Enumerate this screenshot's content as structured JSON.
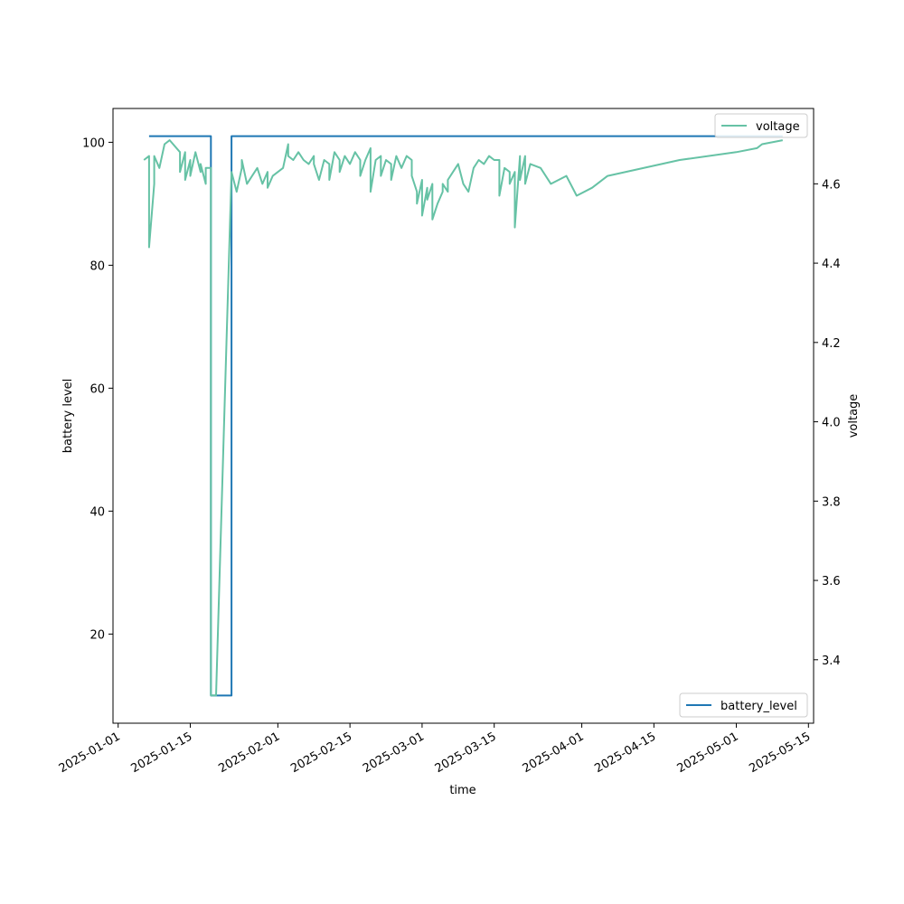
{
  "chart_data": {
    "type": "line",
    "title": "",
    "xlabel": "time",
    "ylabel_left": "battery level",
    "ylabel_right": "voltage",
    "x_ticks": [
      "2025-01-01",
      "2025-01-15",
      "2025-02-01",
      "2025-02-15",
      "2025-03-01",
      "2025-03-15",
      "2025-04-01",
      "2025-04-15",
      "2025-05-01",
      "2025-05-15"
    ],
    "y_left_ticks": [
      "20",
      "40",
      "60",
      "80",
      "100"
    ],
    "y_right_ticks": [
      "3.4",
      "3.6",
      "3.8",
      "4.0",
      "4.2",
      "4.4",
      "4.6"
    ],
    "xlim": [
      "2024-12-31",
      "2025-05-16"
    ],
    "ylim_left": [
      5.5,
      105.5
    ],
    "ylim_right": [
      3.24,
      4.79
    ],
    "grid": false,
    "colors": {
      "battery_level": "#1f77b4",
      "voltage": "#66c2a5"
    },
    "series": [
      {
        "name": "battery_level",
        "axis": "left",
        "points": [
          [
            "2025-01-07",
            101
          ],
          [
            "2025-01-19",
            101
          ],
          [
            "2025-01-19",
            10
          ],
          [
            "2025-01-23",
            10
          ],
          [
            "2025-01-23",
            101
          ],
          [
            "2025-05-10",
            101
          ]
        ]
      },
      {
        "name": "voltage",
        "axis": "right",
        "points": [
          [
            "2025-01-06",
            4.66
          ],
          [
            "2025-01-07",
            4.67
          ],
          [
            "2025-01-07",
            4.44
          ],
          [
            "2025-01-08",
            4.6
          ],
          [
            "2025-01-08",
            4.67
          ],
          [
            "2025-01-09",
            4.64
          ],
          [
            "2025-01-10",
            4.7
          ],
          [
            "2025-01-11",
            4.71
          ],
          [
            "2025-01-13",
            4.68
          ],
          [
            "2025-01-13",
            4.63
          ],
          [
            "2025-01-14",
            4.68
          ],
          [
            "2025-01-14",
            4.61
          ],
          [
            "2025-01-15",
            4.66
          ],
          [
            "2025-01-15",
            4.62
          ],
          [
            "2025-01-16",
            4.68
          ],
          [
            "2025-01-17",
            4.63
          ],
          [
            "2025-01-17",
            4.65
          ],
          [
            "2025-01-18",
            4.6
          ],
          [
            "2025-01-18",
            4.64
          ],
          [
            "2025-01-19",
            4.64
          ],
          [
            "2025-01-19",
            4.63
          ],
          [
            "2025-01-19",
            3.31
          ],
          [
            "2025-01-20",
            3.31
          ],
          [
            "2025-01-23",
            4.63
          ],
          [
            "2025-01-24",
            4.58
          ],
          [
            "2025-01-25",
            4.64
          ],
          [
            "2025-01-25",
            4.66
          ],
          [
            "2025-01-26",
            4.6
          ],
          [
            "2025-01-27",
            4.62
          ],
          [
            "2025-01-28",
            4.64
          ],
          [
            "2025-01-29",
            4.6
          ],
          [
            "2025-01-30",
            4.63
          ],
          [
            "2025-01-30",
            4.59
          ],
          [
            "2025-01-31",
            4.62
          ],
          [
            "2025-02-01",
            4.63
          ],
          [
            "2025-02-02",
            4.64
          ],
          [
            "2025-02-03",
            4.7
          ],
          [
            "2025-02-03",
            4.67
          ],
          [
            "2025-02-04",
            4.66
          ],
          [
            "2025-02-05",
            4.68
          ],
          [
            "2025-02-06",
            4.66
          ],
          [
            "2025-02-07",
            4.65
          ],
          [
            "2025-02-08",
            4.67
          ],
          [
            "2025-02-08",
            4.65
          ],
          [
            "2025-02-09",
            4.61
          ],
          [
            "2025-02-10",
            4.66
          ],
          [
            "2025-02-11",
            4.65
          ],
          [
            "2025-02-11",
            4.61
          ],
          [
            "2025-02-12",
            4.68
          ],
          [
            "2025-02-13",
            4.66
          ],
          [
            "2025-02-13",
            4.63
          ],
          [
            "2025-02-14",
            4.67
          ],
          [
            "2025-02-15",
            4.65
          ],
          [
            "2025-02-16",
            4.68
          ],
          [
            "2025-02-17",
            4.66
          ],
          [
            "2025-02-17",
            4.62
          ],
          [
            "2025-02-18",
            4.66
          ],
          [
            "2025-02-19",
            4.69
          ],
          [
            "2025-02-19",
            4.58
          ],
          [
            "2025-02-20",
            4.66
          ],
          [
            "2025-02-21",
            4.67
          ],
          [
            "2025-02-21",
            4.62
          ],
          [
            "2025-02-22",
            4.66
          ],
          [
            "2025-02-23",
            4.65
          ],
          [
            "2025-02-23",
            4.61
          ],
          [
            "2025-02-24",
            4.67
          ],
          [
            "2025-02-25",
            4.64
          ],
          [
            "2025-02-26",
            4.67
          ],
          [
            "2025-02-27",
            4.66
          ],
          [
            "2025-02-27",
            4.62
          ],
          [
            "2025-02-28",
            4.58
          ],
          [
            "2025-02-28",
            4.55
          ],
          [
            "2025-03-01",
            4.61
          ],
          [
            "2025-03-01",
            4.52
          ],
          [
            "2025-03-02",
            4.59
          ],
          [
            "2025-03-02",
            4.56
          ],
          [
            "2025-03-03",
            4.6
          ],
          [
            "2025-03-03",
            4.51
          ],
          [
            "2025-03-04",
            4.55
          ],
          [
            "2025-03-05",
            4.58
          ],
          [
            "2025-03-05",
            4.6
          ],
          [
            "2025-03-06",
            4.58
          ],
          [
            "2025-03-06",
            4.61
          ],
          [
            "2025-03-07",
            4.63
          ],
          [
            "2025-03-08",
            4.65
          ],
          [
            "2025-03-09",
            4.6
          ],
          [
            "2025-03-10",
            4.58
          ],
          [
            "2025-03-11",
            4.64
          ],
          [
            "2025-03-12",
            4.66
          ],
          [
            "2025-03-13",
            4.65
          ],
          [
            "2025-03-14",
            4.67
          ],
          [
            "2025-03-15",
            4.66
          ],
          [
            "2025-03-16",
            4.66
          ],
          [
            "2025-03-16",
            4.57
          ],
          [
            "2025-03-17",
            4.64
          ],
          [
            "2025-03-18",
            4.63
          ],
          [
            "2025-03-18",
            4.6
          ],
          [
            "2025-03-19",
            4.63
          ],
          [
            "2025-03-19",
            4.49
          ],
          [
            "2025-03-20",
            4.67
          ],
          [
            "2025-03-20",
            4.61
          ],
          [
            "2025-03-21",
            4.67
          ],
          [
            "2025-03-21",
            4.6
          ],
          [
            "2025-03-22",
            4.65
          ],
          [
            "2025-03-24",
            4.64
          ],
          [
            "2025-03-26",
            4.6
          ],
          [
            "2025-03-29",
            4.62
          ],
          [
            "2025-03-31",
            4.57
          ],
          [
            "2025-04-03",
            4.59
          ],
          [
            "2025-04-06",
            4.62
          ],
          [
            "2025-04-20",
            4.66
          ],
          [
            "2025-05-01",
            4.68
          ],
          [
            "2025-05-05",
            4.69
          ],
          [
            "2025-05-06",
            4.7
          ],
          [
            "2025-05-10",
            4.71
          ]
        ]
      }
    ]
  }
}
